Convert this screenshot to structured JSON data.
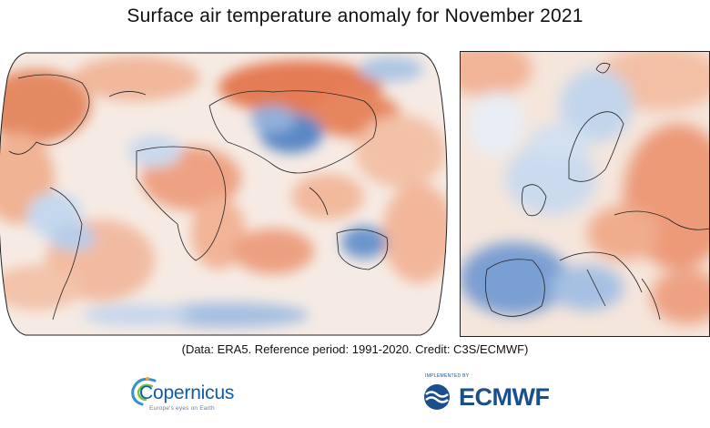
{
  "title": "Surface air temperature anomaly for November 2021",
  "credit": "(Data: ERA5.  Reference period: 1991-2020.  Credit: C3S/ECMWF)",
  "maps": [
    {
      "region": "global",
      "projection": "robinson"
    },
    {
      "region": "europe"
    }
  ],
  "logos": {
    "copernicus": {
      "name": "Copernicus",
      "tagline": "Europe's eyes on Earth"
    },
    "ecmwf": {
      "name": "ECMWF",
      "tagline": "IMPLEMENTED BY"
    }
  },
  "colors": {
    "warm": "#e07c55",
    "warm_light": "#f3c2a8",
    "cold": "#4f7fc1",
    "cold_light": "#c5d8ee",
    "neutral": "#f5f1ee",
    "coast": "#222222",
    "brand_blue": "#1a4f8c"
  }
}
